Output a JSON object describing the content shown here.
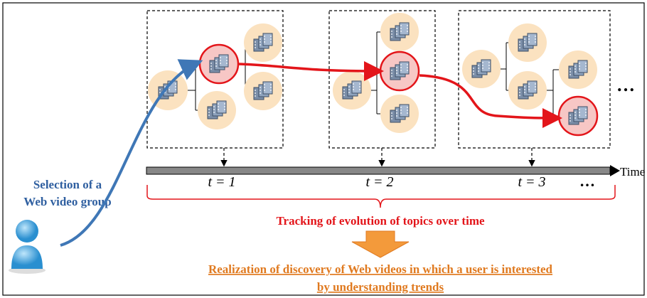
{
  "selection": {
    "line1": "Selection of  a",
    "line2": "Web video group"
  },
  "timeline": {
    "label": "Time",
    "steps": [
      "t = 1",
      "t = 2",
      "t = 3"
    ],
    "ellipsis": "…",
    "more": "…"
  },
  "tracking": "Tracking of evolution of topics over time",
  "conclusion": {
    "line1": "Realization of discovery of Web videos in which a user is interested",
    "line2": "by understanding trends"
  }
}
